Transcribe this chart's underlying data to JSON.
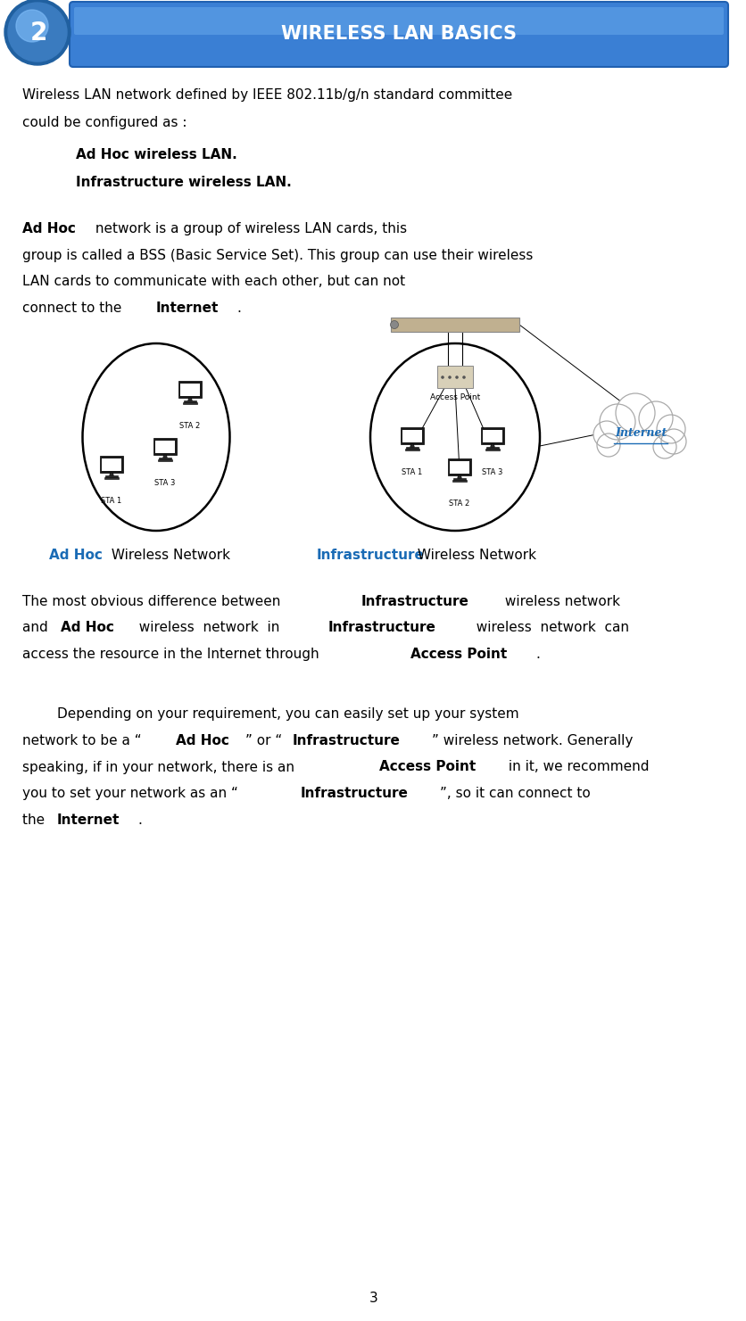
{
  "page_number": "3",
  "header_title": "WIRELESS LAN BASICS",
  "header_bg_color": "#4a90d9",
  "header_text_color": "#ffffff",
  "body_bg_color": "#ffffff",
  "body_text_color": "#000000",
  "blue_highlight_color": "#1a6bb5",
  "paragraph1_line1": "Wireless LAN network defined by IEEE 802.11b/g/n standard committee",
  "paragraph1_line2": "could be configured as :",
  "bullet1": "Ad Hoc wireless LAN.",
  "bullet2": "Infrastructure wireless LAN.",
  "label_adhoc": "Ad Hoc",
  "label_adhoc_suffix": " Wireless Network",
  "label_infra": "Infrastructure",
  "label_infra_suffix": " Wireless Network"
}
